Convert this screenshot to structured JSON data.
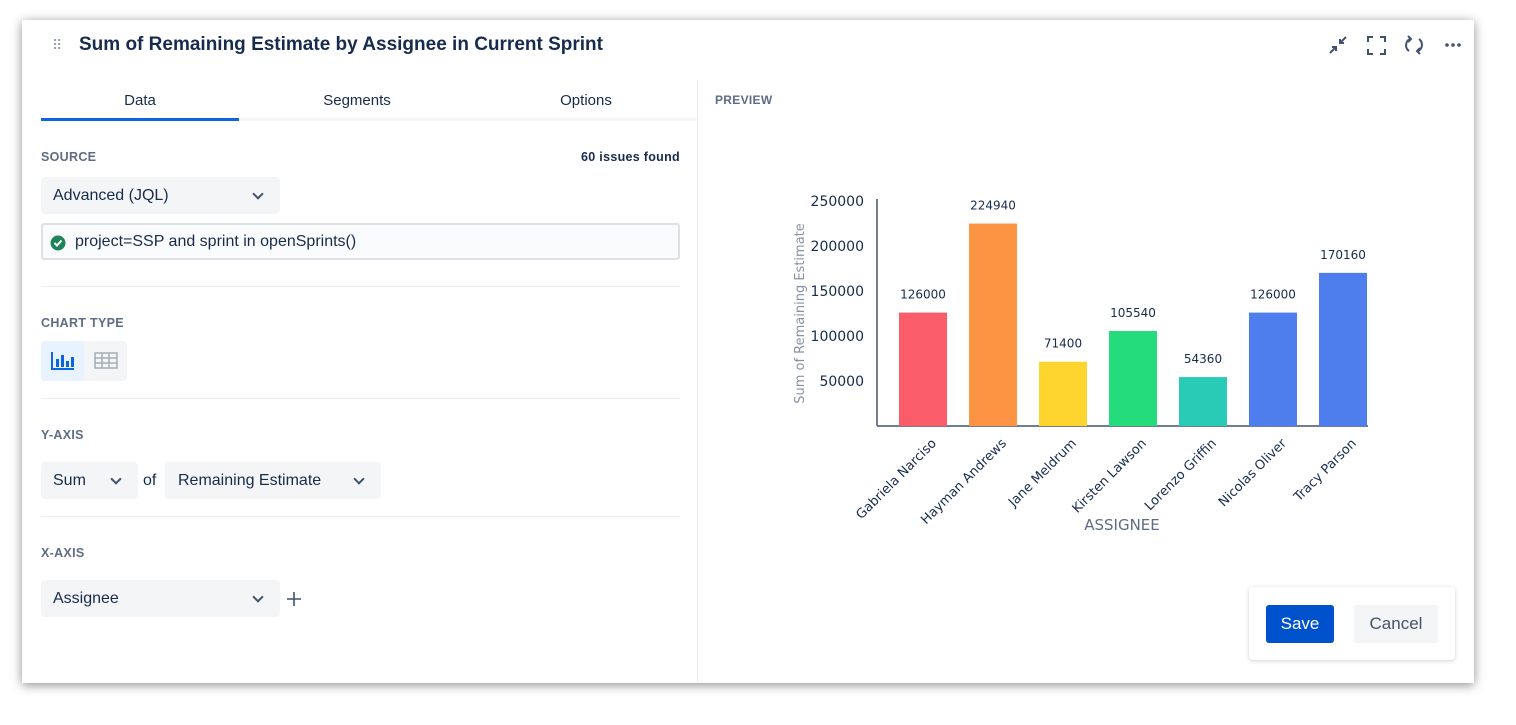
{
  "header": {
    "title": "Sum of Remaining Estimate by Assignee in Current Sprint"
  },
  "tabs": [
    "Data",
    "Segments",
    "Options"
  ],
  "source": {
    "label": "SOURCE",
    "count": "60 issues found",
    "mode": "Advanced (JQL)",
    "query": "project=SSP and sprint in openSprints()"
  },
  "chart_type": {
    "label": "CHART TYPE"
  },
  "y_axis": {
    "label": "Y-AXIS",
    "aggregate": "Sum",
    "of": "of",
    "field": "Remaining Estimate"
  },
  "x_axis": {
    "label": "X-AXIS",
    "field": "Assignee"
  },
  "preview": {
    "label": "PREVIEW"
  },
  "buttons": {
    "save": "Save",
    "cancel": "Cancel"
  },
  "chart_data": {
    "type": "bar",
    "y_label": "Sum of Remaining Estimate",
    "x_label": "ASSIGNEE",
    "categories": [
      "Gabriela Narciso",
      "Hayman Andrews",
      "Jane Meldrum",
      "Kirsten Lawson",
      "Lorenzo Griffin",
      "Nicolas Oliver",
      "Tracy Parson"
    ],
    "values": [
      126000,
      224940,
      71400,
      105540,
      54360,
      126000,
      170160
    ],
    "colors": [
      "#fb5c6a",
      "#fd9444",
      "#fed42e",
      "#25dc7d",
      "#2acbb6",
      "#4e7ded",
      "#4e7ded"
    ],
    "ylim": [
      0,
      250000
    ],
    "yticks": [
      50000,
      100000,
      150000,
      200000,
      250000
    ],
    "grid": false
  }
}
